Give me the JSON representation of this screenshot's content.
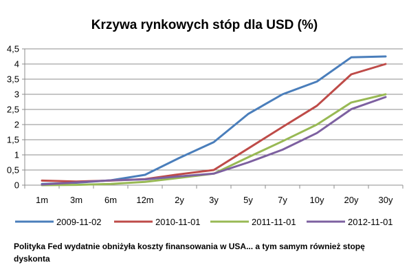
{
  "chart_data": {
    "type": "line",
    "title": "Krzywa rynkowych stóp dla USD (%)",
    "categories": [
      "1m",
      "3m",
      "6m",
      "12m",
      "2y",
      "3y",
      "5y",
      "7y",
      "10y",
      "20y",
      "30y"
    ],
    "ylim": [
      0,
      4.5
    ],
    "yticks": [
      "0",
      "0,5",
      "1",
      "1,5",
      "2",
      "2,5",
      "3",
      "3,5",
      "4",
      "4,5"
    ],
    "grid": true,
    "legend": "bottom",
    "series": [
      {
        "name": "2009-11-02",
        "color": "#4A7EBB",
        "values": [
          0.04,
          0.08,
          0.16,
          0.34,
          0.9,
          1.42,
          2.35,
          3.0,
          3.42,
          4.22,
          4.25
        ]
      },
      {
        "name": "2010-11-01",
        "color": "#BE4B48",
        "values": [
          0.15,
          0.12,
          0.15,
          0.2,
          0.36,
          0.5,
          1.21,
          1.92,
          2.62,
          3.66,
          4.0
        ]
      },
      {
        "name": "2011-11-01",
        "color": "#98B954",
        "values": [
          0.0,
          0.01,
          0.04,
          0.11,
          0.24,
          0.38,
          0.92,
          1.45,
          2.0,
          2.73,
          3.0
        ]
      },
      {
        "name": "2012-11-01",
        "color": "#7D60A0",
        "values": [
          0.02,
          0.09,
          0.16,
          0.19,
          0.29,
          0.38,
          0.75,
          1.17,
          1.72,
          2.51,
          2.91
        ]
      }
    ]
  },
  "caption": "Polityka Fed wydatnie obniżyła koszty finansowania w USA... a tym samym również stopę dyskonta"
}
